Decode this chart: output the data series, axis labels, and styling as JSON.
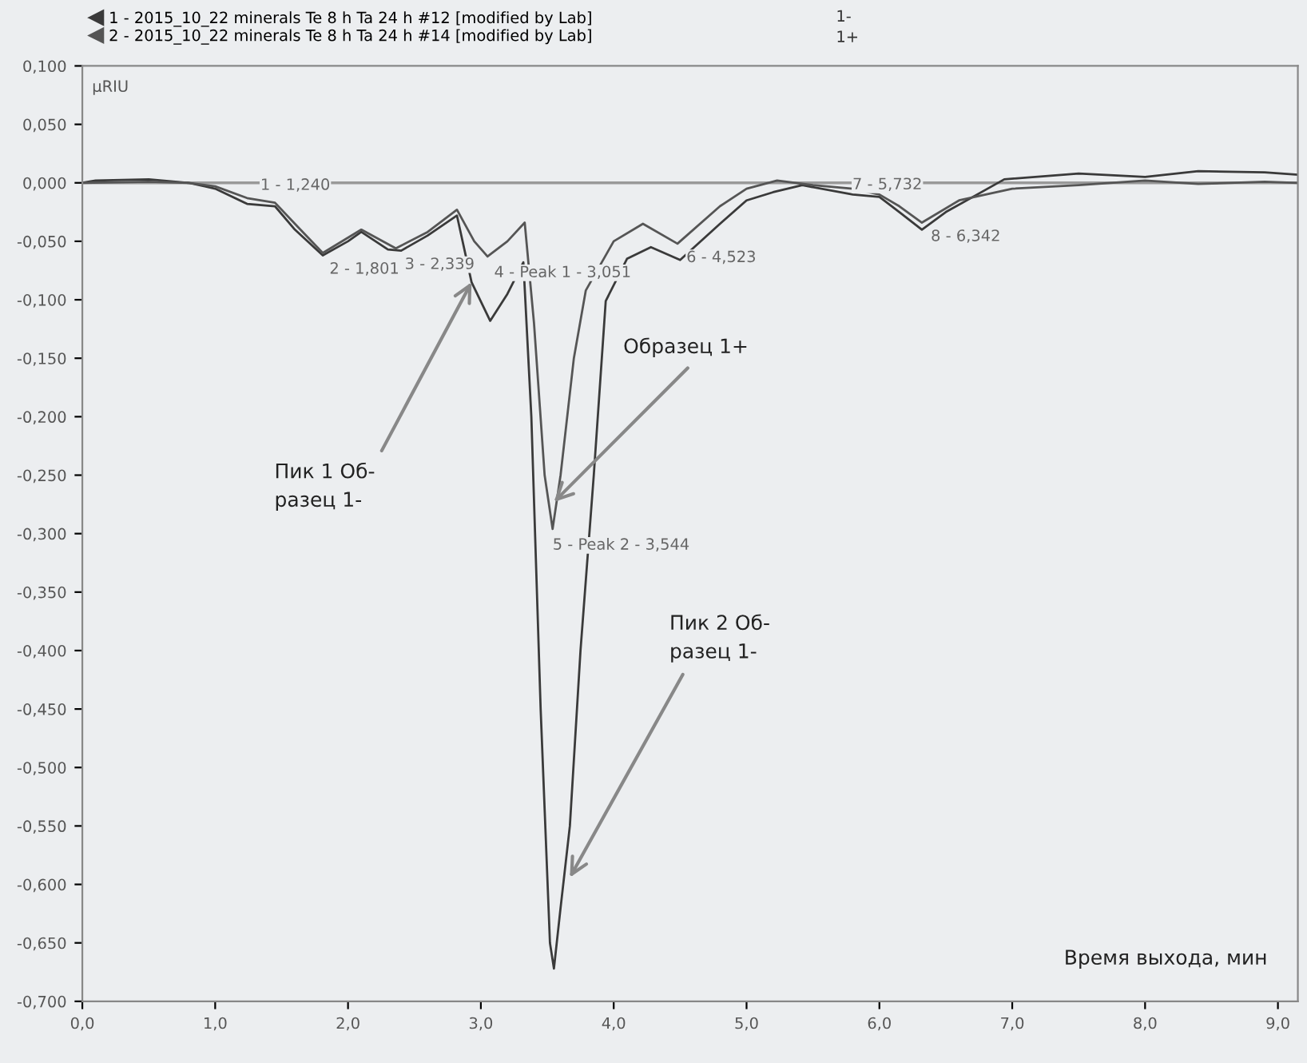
{
  "chart_data": {
    "type": "line",
    "xlabel": "Время выхода, мин",
    "ylabel": "μRIU",
    "series": [
      {
        "name": "1 - 2015_10_22 minerals Te 8 h Ta 24 h #12 [modified by Lab]",
        "color": "#3a3a3a",
        "x": [
          0.0,
          0.1,
          0.5,
          0.8,
          1.0,
          1.24,
          1.45,
          1.6,
          1.81,
          2.0,
          2.1,
          2.3,
          2.4,
          2.6,
          2.82,
          2.93,
          3.07,
          3.2,
          3.32,
          3.38,
          3.45,
          3.52,
          3.55,
          3.6,
          3.67,
          3.75,
          3.85,
          3.94,
          4.1,
          4.28,
          4.5,
          4.8,
          5.0,
          5.2,
          5.42,
          5.8,
          6.0,
          6.15,
          6.32,
          6.5,
          6.94,
          7.5,
          8.0,
          8.4,
          8.9,
          9.15
        ],
        "values": [
          0.0,
          0.002,
          0.003,
          0.0,
          -0.005,
          -0.018,
          -0.02,
          -0.04,
          -0.062,
          -0.05,
          -0.042,
          -0.057,
          -0.058,
          -0.045,
          -0.028,
          -0.085,
          -0.118,
          -0.095,
          -0.068,
          -0.2,
          -0.45,
          -0.65,
          -0.672,
          -0.62,
          -0.55,
          -0.4,
          -0.25,
          -0.101,
          -0.065,
          -0.055,
          -0.066,
          -0.035,
          -0.015,
          -0.008,
          -0.002,
          -0.01,
          -0.012,
          -0.025,
          -0.04,
          -0.025,
          0.003,
          0.008,
          0.005,
          0.01,
          0.009,
          0.007
        ]
      },
      {
        "name": "2 - 2015_10_22 minerals Te 8 h Ta 24 h #14 [modified by Lab]",
        "color": "#555555",
        "x": [
          0.0,
          0.5,
          0.8,
          1.0,
          1.24,
          1.45,
          1.6,
          1.81,
          2.1,
          2.36,
          2.6,
          2.82,
          2.95,
          3.05,
          3.2,
          3.33,
          3.4,
          3.48,
          3.54,
          3.6,
          3.7,
          3.79,
          4.0,
          4.22,
          4.48,
          4.8,
          5.0,
          5.23,
          5.5,
          5.8,
          6.0,
          6.15,
          6.32,
          6.6,
          7.0,
          7.5,
          8.0,
          8.4,
          8.9,
          9.15
        ],
        "values": [
          0.0,
          0.001,
          0.0,
          -0.003,
          -0.013,
          -0.017,
          -0.035,
          -0.06,
          -0.04,
          -0.056,
          -0.042,
          -0.023,
          -0.05,
          -0.063,
          -0.05,
          -0.034,
          -0.12,
          -0.25,
          -0.296,
          -0.25,
          -0.15,
          -0.092,
          -0.05,
          -0.035,
          -0.052,
          -0.02,
          -0.005,
          0.002,
          -0.002,
          -0.005,
          -0.01,
          -0.02,
          -0.034,
          -0.015,
          -0.005,
          -0.002,
          0.002,
          -0.001,
          0.001,
          0.0
        ]
      }
    ],
    "legend": "top",
    "xlim": [
      0,
      9.15
    ],
    "ylim": [
      -0.7,
      0.1
    ],
    "xticks": [
      {
        "value": 0,
        "label": "0,0"
      },
      {
        "value": 1,
        "label": "1,0"
      },
      {
        "value": 2,
        "label": "2,0"
      },
      {
        "value": 3,
        "label": "3,0"
      },
      {
        "value": 4,
        "label": "4,0"
      },
      {
        "value": 5,
        "label": "5,0"
      },
      {
        "value": 6,
        "label": "6,0"
      },
      {
        "value": 7,
        "label": "7,0"
      },
      {
        "value": 8,
        "label": "8,0"
      },
      {
        "value": 9,
        "label": "9,0"
      }
    ],
    "yticks": [
      {
        "value": 0.1,
        "label": "0,100"
      },
      {
        "value": 0.05,
        "label": "0,050"
      },
      {
        "value": 0,
        "label": "0,000"
      },
      {
        "value": -0.05,
        "label": "-0,050"
      },
      {
        "value": -0.1,
        "label": "-0,100"
      },
      {
        "value": -0.15,
        "label": "-0,150"
      },
      {
        "value": -0.2,
        "label": "-0,200"
      },
      {
        "value": -0.25,
        "label": "-0,250"
      },
      {
        "value": -0.3,
        "label": "-0,300"
      },
      {
        "value": -0.35,
        "label": "-0,350"
      },
      {
        "value": -0.4,
        "label": "-0,400"
      },
      {
        "value": -0.45,
        "label": "-0,450"
      },
      {
        "value": -0.5,
        "label": "-0,500"
      },
      {
        "value": -0.55,
        "label": "-0,550"
      },
      {
        "value": -0.6,
        "label": "-0,600"
      },
      {
        "value": -0.65,
        "label": "-0,650"
      },
      {
        "value": -0.7,
        "label": "-0,700"
      }
    ],
    "ref_lines": [
      {
        "axis": "y",
        "value": 0,
        "color": "#999999"
      }
    ],
    "grid": false,
    "annotations": [
      {
        "text": "1 - 1,240",
        "x": 1.24,
        "y": -0.013
      },
      {
        "text": "2 - 1,801",
        "x": 1.81,
        "y": -0.06
      },
      {
        "text": "3 - 2,339",
        "x": 2.36,
        "y": -0.056
      },
      {
        "text": "4 - Peak 1 - 3,051",
        "x": 3.05,
        "y": -0.063
      },
      {
        "text": "5 - Peak 2 - 3,544",
        "x": 3.54,
        "y": -0.296
      },
      {
        "text": "6 - 4,523",
        "x": 4.48,
        "y": -0.052
      },
      {
        "text": "7 - 5,732",
        "x": 5.73,
        "y": -0.003
      },
      {
        "text": "8 - 6,342",
        "x": 6.32,
        "y": -0.034
      },
      {
        "text": "Пик 1 Об-\nразец 1-",
        "x": 2.93,
        "y": -0.085
      },
      {
        "text": "Образец 1+",
        "x": 3.55,
        "y": -0.273
      },
      {
        "text": "Пик 2 Об-\nразец 1-",
        "x": 3.67,
        "y": -0.594
      },
      "1-",
      "1+"
    ]
  }
}
